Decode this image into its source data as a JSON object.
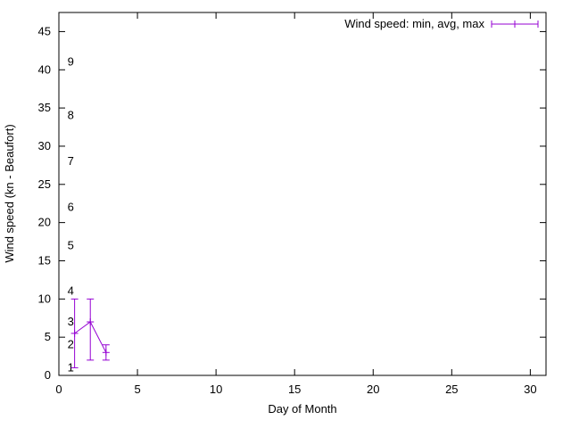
{
  "chart_data": {
    "type": "line",
    "subtype": "yerrorlines",
    "title": "",
    "legend": "Wind speed: min, avg, max",
    "legend_position": "top-right",
    "xlabel": "Day of Month",
    "ylabel": "Wind speed (kn - Beaufort)",
    "xlim": [
      0,
      31
    ],
    "ylim": [
      0,
      47.5
    ],
    "x_ticks": [
      0,
      5,
      10,
      15,
      20,
      25,
      30
    ],
    "y_ticks": [
      0,
      5,
      10,
      15,
      20,
      25,
      30,
      35,
      40,
      45
    ],
    "grid": false,
    "x": [
      1,
      2,
      3
    ],
    "series": [
      {
        "name": "min",
        "values": [
          1,
          2,
          2
        ]
      },
      {
        "name": "avg",
        "values": [
          5.5,
          7,
          3
        ]
      },
      {
        "name": "max",
        "values": [
          10,
          10,
          4
        ]
      }
    ],
    "beaufort_scale": [
      {
        "label": "1",
        "kn": 1
      },
      {
        "label": "2",
        "kn": 4
      },
      {
        "label": "3",
        "kn": 7
      },
      {
        "label": "4",
        "kn": 11
      },
      {
        "label": "5",
        "kn": 17
      },
      {
        "label": "6",
        "kn": 22
      },
      {
        "label": "7",
        "kn": 28
      },
      {
        "label": "8",
        "kn": 34
      },
      {
        "label": "9",
        "kn": 41
      }
    ],
    "colors": {
      "series": "#9400d3",
      "axis": "#000000",
      "background": "#ffffff"
    }
  }
}
